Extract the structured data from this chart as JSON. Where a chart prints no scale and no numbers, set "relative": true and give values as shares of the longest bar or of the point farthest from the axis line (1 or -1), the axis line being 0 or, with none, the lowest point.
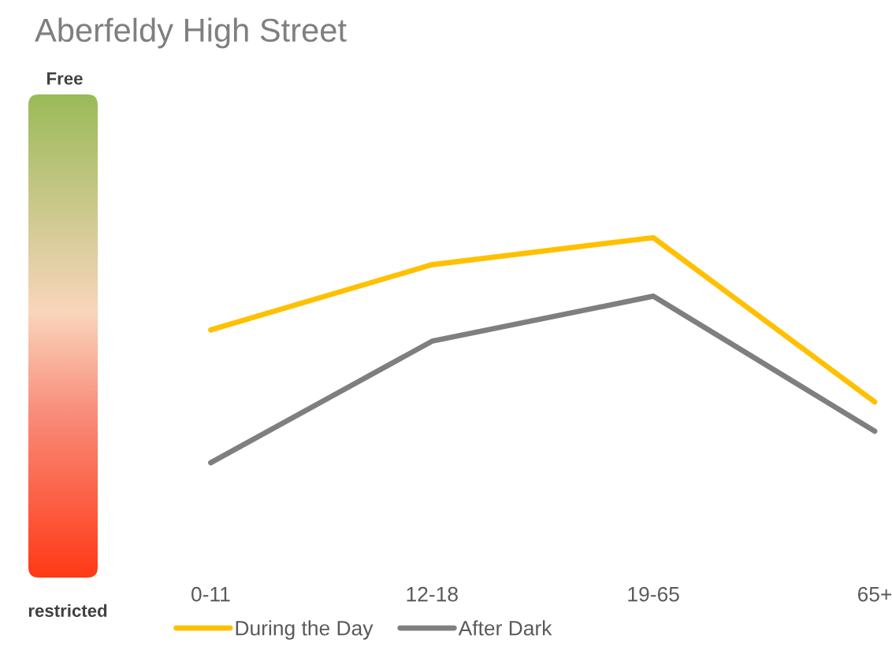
{
  "chart_data": {
    "type": "line",
    "title": "Aberfeldy High Street",
    "categories": [
      "0-11",
      "12-18",
      "19-65",
      "65+"
    ],
    "relative": true,
    "series": [
      {
        "name": "During the Day",
        "color": "#ffc000",
        "values": [
          0.59,
          0.88,
          1,
          0.27
        ]
      },
      {
        "name": "After Dark",
        "color": "#7f7f7f",
        "values": [
          0,
          0.54,
          0.74,
          0.14
        ]
      }
    ],
    "annotations": [
      "Free",
      "restricted"
    ],
    "legend": "bottom",
    "grid": false,
    "line_style": "solid"
  }
}
